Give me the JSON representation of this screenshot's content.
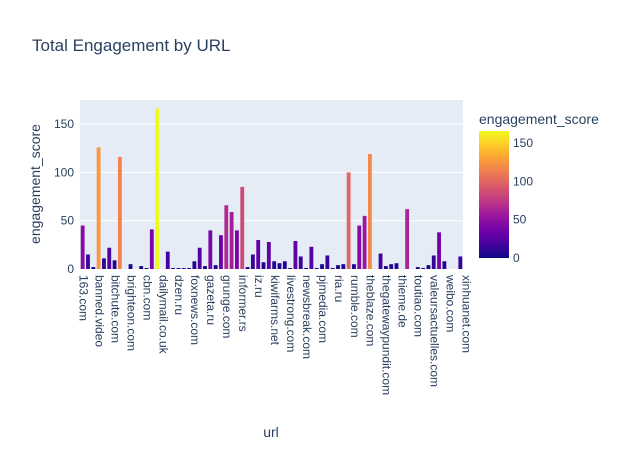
{
  "chart_data": {
    "type": "bar",
    "title": "Total Engagement by URL",
    "xlabel": "url",
    "ylabel": "engagement_score",
    "ylim": [
      0,
      175
    ],
    "yticks": [
      0,
      50,
      100,
      150
    ],
    "colorbar": {
      "title": "engagement_score",
      "range": [
        0,
        166
      ],
      "ticks": [
        0,
        50,
        100,
        150
      ]
    },
    "colorscale": [
      "#0d0887",
      "#46039f",
      "#7201a8",
      "#9c179e",
      "#bd3786",
      "#d8576b",
      "#ed7953",
      "#fb9f3a",
      "#fdca26",
      "#f0f921"
    ],
    "tick_labels": [
      "163.com",
      "banned.video",
      "bitchute.com",
      "brighteon.com",
      "cbn.com",
      "dailymail.co.uk",
      "dzen.ru",
      "foxnews.com",
      "gazeta.ru",
      "grunge.com",
      "informer.rs",
      "iz.ru",
      "kiwifarms.net",
      "livestrong.com",
      "newsbreak.com",
      "pjmedia.com",
      "ria.ru",
      "rumble.com",
      "theblaze.com",
      "thegatewaypundit.com",
      "thieme.de",
      "toutiao.com",
      "valeursactuelles.com",
      "weibo.com",
      "xinhuanet.com"
    ],
    "values": [
      45,
      15,
      2,
      126,
      11,
      22,
      9,
      116,
      0,
      5,
      0,
      3,
      1,
      41,
      166,
      0,
      18,
      1,
      1,
      1,
      1,
      8,
      22,
      3,
      40,
      4,
      35,
      66,
      59,
      40,
      85,
      2,
      15,
      30,
      7,
      28,
      8,
      6,
      8,
      1,
      29,
      13,
      1,
      23,
      1,
      5,
      14,
      1,
      4,
      5,
      100,
      5,
      45,
      55,
      119,
      0,
      16,
      3,
      5,
      6,
      0,
      62,
      0,
      2,
      1,
      4,
      14,
      38,
      8,
      0,
      0,
      13
    ]
  }
}
